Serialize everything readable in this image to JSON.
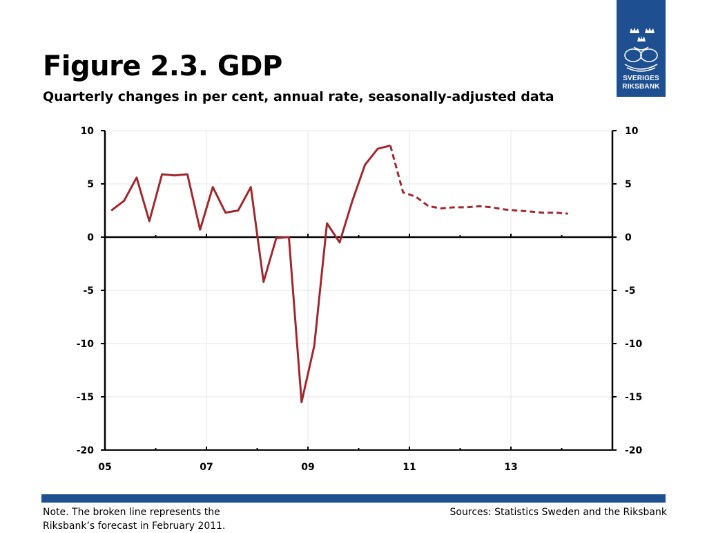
{
  "header": {
    "title": "Figure 2.3. GDP",
    "subtitle": "Quarterly changes in per cent, annual rate, seasonally-adjusted data"
  },
  "logo": {
    "line1": "SVERIGES",
    "line2": "RIKSBANK",
    "brand_color": "#1d4f91"
  },
  "footer": {
    "note_line1": "Note. The broken line represents the",
    "note_line2": "Riksbank’s forecast in February 2011.",
    "sources": "Sources: Statistics Sweden and the Riksbank"
  },
  "chart_data": {
    "type": "line",
    "title": "Figure 2.3. GDP",
    "subtitle": "Quarterly changes in per cent, annual rate, seasonally-adjusted data",
    "xlabel": "",
    "ylabel": "",
    "ylim": [
      -20,
      10
    ],
    "xlim": [
      2005.0,
      2015.0
    ],
    "y_ticks": [
      "10",
      "5",
      "0",
      "-5",
      "-10",
      "-15",
      "-20"
    ],
    "y_tick_values": [
      10,
      5,
      0,
      -5,
      -10,
      -15,
      -20
    ],
    "x_tick_labels": [
      "05",
      "07",
      "09",
      "11",
      "13"
    ],
    "x_tick_values": [
      2005,
      2007,
      2009,
      2011,
      2013
    ],
    "grid": true,
    "dual_y_axis": true,
    "line_color": "#a0282d",
    "series": [
      {
        "style": "solid",
        "x": [
          2005.125,
          2005.375,
          2005.625,
          2005.875,
          2006.125,
          2006.375,
          2006.625,
          2006.875,
          2007.125,
          2007.375,
          2007.625,
          2007.875,
          2008.125,
          2008.375,
          2008.625,
          2008.875,
          2009.125,
          2009.375,
          2009.625,
          2009.875,
          2010.125,
          2010.375,
          2010.625
        ],
        "values": [
          2.5,
          3.4,
          5.6,
          1.5,
          5.9,
          5.8,
          5.9,
          0.7,
          4.7,
          2.3,
          2.5,
          4.7,
          -4.2,
          -0.1,
          0.0,
          -15.5,
          -10.2,
          1.3,
          -0.5,
          3.4,
          6.8,
          8.3,
          8.6
        ]
      },
      {
        "style": "dashed",
        "x": [
          2010.625,
          2010.875,
          2011.125,
          2011.375,
          2011.625,
          2011.875,
          2012.125,
          2012.375,
          2012.625,
          2012.875,
          2013.125,
          2013.375,
          2013.625,
          2013.875,
          2014.125
        ],
        "values": [
          8.6,
          4.2,
          3.8,
          2.9,
          2.7,
          2.8,
          2.8,
          2.9,
          2.8,
          2.6,
          2.5,
          2.4,
          2.3,
          2.3,
          2.2
        ]
      }
    ]
  }
}
